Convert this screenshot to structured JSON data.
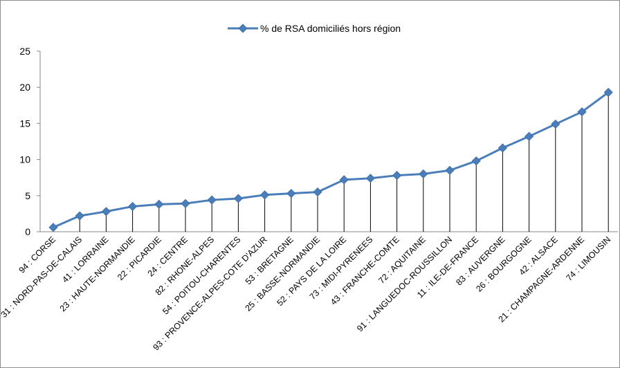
{
  "chart_data": {
    "type": "line",
    "title": "",
    "xlabel": "",
    "ylabel": "",
    "ylim": [
      0,
      25
    ],
    "yticks": [
      0,
      5,
      10,
      15,
      20,
      25
    ],
    "grid": false,
    "drop_lines": true,
    "legend_position": "top",
    "categories": [
      "94 : CORSE",
      "31 : NORD-PAS-DE-CALAIS",
      "41 : LORRAINE",
      "23 : HAUTE-NORMANDIE",
      "22 : PICARDIE",
      "24 : CENTRE",
      "82 : RHONE-ALPES",
      "54 : POITOU-CHARENTES",
      "93 : PROVENCE-ALPES-COTE D'AZUR",
      "53 : BRETAGNE",
      "25 : BASSE-NORMANDIE",
      "52 : PAYS DE LA LOIRE",
      "73 : MIDI-PYRENEES",
      "43 : FRANCHE-COMTE",
      "72 : AQUITAINE",
      "91 : LANGUEDOC-ROUSSILLON",
      "11 : ILE-DE-FRANCE",
      "83 : AUVERGNE",
      "26 : BOURGOGNE",
      "42 : ALSACE",
      "21 : CHAMPAGNE-ARDENNE",
      "74 : LIMOUSIN"
    ],
    "series": [
      {
        "name": "% de RSA domiciliés hors région",
        "color": "#4a7ebb",
        "values": [
          0.6,
          2.2,
          2.8,
          3.5,
          3.8,
          3.9,
          4.4,
          4.6,
          5.1,
          5.3,
          5.5,
          7.2,
          7.4,
          7.8,
          8.0,
          8.5,
          9.8,
          11.6,
          13.2,
          14.9,
          16.6,
          19.3
        ]
      }
    ]
  }
}
